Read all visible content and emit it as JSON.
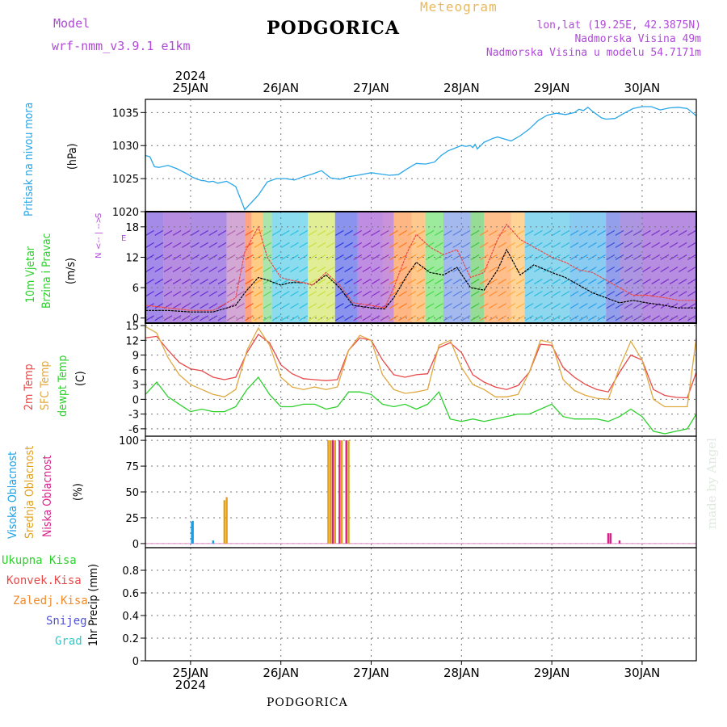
{
  "header": {
    "model_label": "Model",
    "model_name": "wrf-nmm_v3.9.1 e1km",
    "station": "PODGORICA",
    "product": "Meteogram",
    "lonlat": "lon,lat (19.25E, 42.3875N)",
    "elevation": "Nadmorska Visina 49m",
    "model_elevation": "Nadmorska Visina u modelu 54.7171m"
  },
  "footer": {
    "station": "PODGORICA",
    "credit": "made by Angel"
  },
  "time_axis": {
    "days": [
      "25JAN",
      "26JAN",
      "27JAN",
      "28JAN",
      "29JAN",
      "30JAN"
    ],
    "year": "2024"
  },
  "colors": {
    "pressure": "#2aa7e8",
    "temp2m": "#e84a4a",
    "sfc": "#e0a840",
    "dewpt": "#2ed02e",
    "high_cloud": "#1aa0e8",
    "mid_cloud": "#e0a020",
    "low_cloud": "#d8208a",
    "total_precip": "#2ed02e",
    "conv_precip": "#e84a4a",
    "frozen_precip": "#f08a2a",
    "snow": "#5050d8",
    "hail": "#30c8c8"
  },
  "chart_data": [
    {
      "type": "line",
      "panel": "pressure",
      "ylabel": [
        "Pritisak na nivou mora",
        "(hPa)"
      ],
      "ylim": [
        1020,
        1037
      ],
      "yticks": [
        1020,
        1025,
        1030,
        1035
      ],
      "grid": true,
      "series": [
        {
          "x": [
            0.0,
            0.1,
            0.2,
            0.3,
            0.5,
            0.7,
            0.9,
            1.05,
            1.15,
            1.25,
            1.3,
            1.4,
            1.5,
            1.6,
            1.8,
            2.0,
            2.2,
            2.5,
            2.7,
            2.9,
            3.1,
            3.3,
            3.5,
            3.7,
            3.9,
            4.1,
            4.3,
            4.5,
            4.7,
            5.0,
            5.2,
            5.4,
            5.6,
            5.8,
            6.0,
            6.2,
            6.4,
            6.55,
            6.7,
            6.85,
            7.0,
            7.1,
            7.2,
            7.25,
            7.3,
            7.35,
            7.5,
            7.7,
            7.8,
            7.9,
            8.1,
            8.3,
            8.5,
            8.7,
            8.9,
            9.1,
            9.3,
            9.5,
            9.6,
            9.7,
            9.8,
            9.9,
            10.0,
            10.1,
            10.2,
            10.4,
            10.6,
            10.8,
            11.0,
            11.2,
            11.4,
            11.6,
            11.8,
            12.0,
            12.2
          ],
          "y": [
            1028.5,
            1028.3,
            1026.8,
            1026.7,
            1027.0,
            1026.5,
            1025.8,
            1025.2,
            1024.9,
            1024.7,
            1024.7,
            1024.5,
            1024.6,
            1024.3,
            1024.6,
            1023.8,
            1020.3,
            1022.5,
            1024.5,
            1025.0,
            1025.0,
            1024.8,
            1025.3,
            1025.7,
            1026.2,
            1025.1,
            1024.9,
            1025.3,
            1025.5,
            1025.9,
            1025.7,
            1025.5,
            1025.6,
            1026.5,
            1027.3,
            1027.2,
            1027.5,
            1028.5,
            1029.2,
            1029.6,
            1030.0,
            1029.9,
            1030.0,
            1029.7,
            1030.2,
            1029.5,
            1030.5,
            1031.1,
            1031.3,
            1031.1,
            1030.7,
            1031.5,
            1032.5,
            1033.8,
            1034.6,
            1034.9,
            1034.7,
            1035.0,
            1035.5,
            1035.3,
            1035.8,
            1035.2,
            1034.7,
            1034.2,
            1034.0,
            1034.1,
            1034.9,
            1035.6,
            1035.9,
            1035.9,
            1035.4,
            1035.7,
            1035.8,
            1035.6,
            1034.5
          ],
          "color": "#2aa7e8"
        }
      ]
    },
    {
      "type": "line",
      "panel": "wind",
      "ylabel": [
        "10m Vjetar",
        "Brzina i Pravac",
        "(m/s)"
      ],
      "direction_legend": [
        "N",
        "W",
        "E",
        "S"
      ],
      "ylim": [
        -1,
        21
      ],
      "yticks": [
        0,
        6,
        12,
        18
      ],
      "grid": true,
      "series": [
        {
          "name": "speed",
          "x": [
            0.0,
            0.5,
            1.0,
            1.5,
            2.0,
            2.2,
            2.5,
            2.7,
            3.0,
            3.2,
            3.5,
            3.7,
            4.0,
            4.3,
            4.6,
            5.0,
            5.3,
            5.5,
            5.8,
            6.0,
            6.3,
            6.6,
            6.9,
            7.2,
            7.5,
            7.8,
            8.0,
            8.3,
            8.6,
            9.0,
            9.3,
            9.6,
            9.9,
            10.2,
            10.5,
            10.8,
            11.1,
            11.5,
            11.8,
            12.2
          ],
          "y": [
            1.5,
            1.5,
            1.2,
            1.2,
            2.5,
            5.0,
            8.0,
            7.5,
            6.5,
            7.0,
            7.0,
            6.5,
            8.5,
            6.0,
            2.5,
            2.0,
            1.8,
            4.0,
            8.5,
            11.0,
            9.0,
            8.5,
            10.0,
            6.0,
            5.5,
            9.5,
            13.5,
            8.5,
            10.5,
            9.0,
            8.0,
            6.5,
            5.0,
            4.0,
            3.0,
            3.5,
            3.0,
            2.5,
            2.0,
            2.0
          ],
          "color": "#000000"
        },
        {
          "name": "gust",
          "x": [
            0.0,
            0.5,
            1.0,
            1.5,
            2.0,
            2.2,
            2.5,
            2.7,
            3.0,
            3.2,
            3.5,
            3.7,
            4.0,
            4.3,
            4.6,
            5.0,
            5.3,
            5.5,
            5.8,
            6.0,
            6.3,
            6.6,
            6.9,
            7.2,
            7.5,
            7.8,
            8.0,
            8.3,
            8.6,
            9.0,
            9.3,
            9.6,
            9.9,
            10.2,
            10.5,
            10.8,
            11.1,
            11.5,
            11.8,
            12.2
          ],
          "y": [
            2.5,
            2.0,
            1.5,
            1.5,
            4.0,
            13.0,
            18.0,
            12.0,
            8.0,
            7.5,
            7.0,
            6.5,
            9.0,
            6.5,
            3.0,
            2.5,
            2.0,
            6.0,
            13.0,
            16.5,
            14.0,
            12.5,
            13.5,
            8.0,
            9.0,
            15.5,
            18.5,
            15.5,
            14.0,
            12.0,
            11.0,
            9.5,
            9.0,
            7.5,
            6.0,
            4.5,
            4.5,
            4.0,
            3.5,
            3.5
          ],
          "color": "#e84a4a"
        }
      ]
    },
    {
      "type": "line",
      "panel": "temperature",
      "ylabel": [
        "2m Temp",
        "SFC Temp",
        "dewpt Temp",
        "(C)"
      ],
      "ylim": [
        -7.5,
        15.5
      ],
      "yticks": [
        -6,
        -3,
        0,
        3,
        6,
        9,
        12,
        15
      ],
      "grid": true,
      "series": [
        {
          "name": "2m Temp",
          "x": [
            0.0,
            0.25,
            0.5,
            0.75,
            1.0,
            1.25,
            1.5,
            1.75,
            2.0,
            2.25,
            2.5,
            2.75,
            3.0,
            3.25,
            3.5,
            3.75,
            4.0,
            4.25,
            4.5,
            4.75,
            5.0,
            5.25,
            5.5,
            5.75,
            6.0,
            6.25,
            6.5,
            6.75,
            7.0,
            7.25,
            7.5,
            7.75,
            8.0,
            8.25,
            8.5,
            8.75,
            9.0,
            9.25,
            9.5,
            9.75,
            10.0,
            10.25,
            10.5,
            10.75,
            11.0,
            11.25,
            11.5,
            11.75,
            12.0,
            12.2
          ],
          "y": [
            12.5,
            12.8,
            10.0,
            7.5,
            6.2,
            5.8,
            4.5,
            4.0,
            4.5,
            9.5,
            13.2,
            11.5,
            7.0,
            5.2,
            4.2,
            4.0,
            3.8,
            4.0,
            10.0,
            12.5,
            12.0,
            8.0,
            5.0,
            4.5,
            5.0,
            5.2,
            10.5,
            11.5,
            9.5,
            5.0,
            3.5,
            2.5,
            2.0,
            2.8,
            5.5,
            11.2,
            11.0,
            6.5,
            4.5,
            3.0,
            2.0,
            1.5,
            5.5,
            9.0,
            8.0,
            2.0,
            0.8,
            0.4,
            0.3,
            5.5
          ],
          "color": "#e84a4a"
        },
        {
          "name": "SFC Temp",
          "x": [
            0.0,
            0.25,
            0.5,
            0.75,
            1.0,
            1.25,
            1.5,
            1.75,
            2.0,
            2.25,
            2.5,
            2.75,
            3.0,
            3.25,
            3.5,
            3.75,
            4.0,
            4.25,
            4.5,
            4.75,
            5.0,
            5.25,
            5.5,
            5.75,
            6.0,
            6.25,
            6.5,
            6.75,
            7.0,
            7.25,
            7.5,
            7.75,
            8.0,
            8.25,
            8.5,
            8.75,
            9.0,
            9.25,
            9.5,
            9.75,
            10.0,
            10.25,
            10.5,
            10.75,
            11.0,
            11.25,
            11.5,
            11.75,
            12.0,
            12.2
          ],
          "y": [
            14.8,
            13.5,
            8.5,
            5.0,
            3.0,
            2.0,
            1.0,
            0.5,
            2.0,
            10.0,
            14.5,
            11.0,
            4.5,
            2.5,
            2.0,
            2.5,
            2.0,
            2.5,
            10.0,
            13.0,
            12.0,
            5.0,
            2.0,
            1.2,
            1.5,
            2.0,
            11.0,
            12.0,
            6.5,
            3.0,
            2.0,
            0.5,
            0.5,
            1.0,
            5.5,
            12.0,
            11.5,
            4.0,
            1.8,
            0.8,
            0.2,
            0.0,
            6.5,
            11.8,
            8.0,
            0.0,
            -1.5,
            -1.5,
            -1.5,
            12.5
          ],
          "color": "#e0a840"
        },
        {
          "name": "dewpt Temp",
          "x": [
            0.0,
            0.25,
            0.5,
            0.75,
            1.0,
            1.25,
            1.5,
            1.75,
            2.0,
            2.25,
            2.5,
            2.75,
            3.0,
            3.25,
            3.5,
            3.75,
            4.0,
            4.25,
            4.5,
            4.75,
            5.0,
            5.25,
            5.5,
            5.75,
            6.0,
            6.25,
            6.5,
            6.75,
            7.0,
            7.25,
            7.5,
            7.75,
            8.0,
            8.25,
            8.5,
            8.75,
            9.0,
            9.25,
            9.5,
            9.75,
            10.0,
            10.25,
            10.5,
            10.75,
            11.0,
            11.25,
            11.5,
            11.75,
            12.0,
            12.2
          ],
          "y": [
            1.0,
            3.5,
            0.5,
            -1.0,
            -2.5,
            -2.0,
            -2.5,
            -2.5,
            -1.5,
            2.0,
            4.5,
            1.0,
            -1.5,
            -1.5,
            -1.0,
            -1.0,
            -2.0,
            -1.5,
            1.5,
            1.5,
            1.0,
            -1.0,
            -1.5,
            -1.0,
            -2.0,
            -1.0,
            1.5,
            -4.0,
            -4.5,
            -4.0,
            -4.5,
            -4.0,
            -3.5,
            -3.0,
            -3.0,
            -2.0,
            -1.0,
            -3.5,
            -4.0,
            -4.0,
            -4.0,
            -4.5,
            -3.5,
            -2.0,
            -3.5,
            -6.5,
            -7.0,
            -6.5,
            -6.0,
            -3.0
          ],
          "color": "#2ed02e"
        }
      ]
    },
    {
      "type": "bar",
      "panel": "cloud",
      "ylabel": [
        "Visoka Oblacnost",
        "Srednja Oblacnost",
        "Niska Oblacnost",
        "(%)"
      ],
      "ylim": [
        -4,
        104
      ],
      "yticks": [
        0,
        25,
        50,
        75,
        100
      ],
      "grid": true,
      "series": [
        {
          "name": "Visoka Oblacnost",
          "x": [
            1.03,
            1.05,
            1.5
          ],
          "values": [
            21,
            22,
            3
          ],
          "color": "#1aa0e8"
        },
        {
          "name": "Srednja Oblacnost",
          "x": [
            1.75,
            1.8,
            4.05,
            4.1,
            4.2,
            4.35,
            4.5
          ],
          "values": [
            42,
            45,
            100,
            100,
            100,
            100,
            100
          ],
          "color": "#e0a020"
        },
        {
          "name": "Niska Oblacnost",
          "x": [
            4.15,
            4.3,
            4.45,
            10.25,
            10.3,
            10.5
          ],
          "values": [
            100,
            100,
            100,
            10,
            10,
            3
          ],
          "color": "#d8208a"
        }
      ]
    },
    {
      "type": "bar",
      "panel": "precip",
      "ylabel": [
        "1hr Precip (mm)"
      ],
      "legend": [
        "Ukupna Kisa",
        "Konvek.Kisa",
        "Zaledj.Kisa",
        "Snijeg",
        "Grad"
      ],
      "ylim": [
        0,
        1.0
      ],
      "yticks": [
        0,
        0.2,
        0.4,
        0.6,
        0.8
      ],
      "grid": true,
      "series": []
    }
  ]
}
